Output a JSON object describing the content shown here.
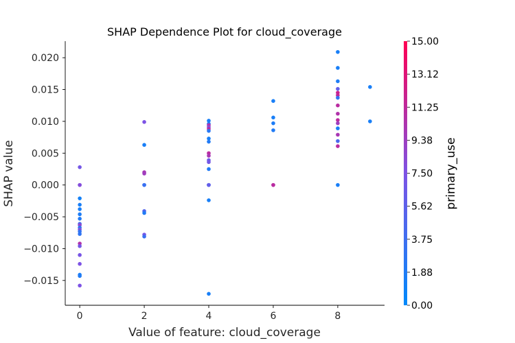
{
  "chart_data": {
    "type": "scatter",
    "title": "SHAP Dependence Plot for cloud_coverage",
    "xlabel": "Value of feature: cloud_coverage",
    "ylabel": "SHAP value",
    "xlim": [
      -0.45,
      9.45
    ],
    "ylim": [
      -0.0189,
      0.0226
    ],
    "xticks": [
      0,
      2,
      4,
      6,
      8
    ],
    "yticks": [
      -0.015,
      -0.01,
      -0.005,
      0.0,
      0.005,
      0.01,
      0.015,
      0.02
    ],
    "ytick_labels": [
      "−0.015",
      "−0.010",
      "−0.005",
      "0.000",
      "0.005",
      "0.010",
      "0.015",
      "0.020"
    ],
    "grid": false,
    "colorbar": {
      "title": "primary_use",
      "range": [
        0,
        15
      ],
      "tick_labels": [
        "0.00",
        "1.88",
        "3.75",
        "5.62",
        "7.50",
        "9.38",
        "11.25",
        "13.12",
        "15.00"
      ],
      "colors": [
        "#008afb",
        "#7d53e5",
        "#ff0052"
      ]
    },
    "points": [
      {
        "x": 0,
        "y": 0.0028,
        "c": 7.0
      },
      {
        "x": 0,
        "y": 0.0,
        "c": 6.5
      },
      {
        "x": 0,
        "y": 0.0,
        "c": 8.0
      },
      {
        "x": 0,
        "y": -0.0021,
        "c": 1.2
      },
      {
        "x": 0,
        "y": -0.0031,
        "c": 1.5
      },
      {
        "x": 0,
        "y": -0.0038,
        "c": 1.5
      },
      {
        "x": 0,
        "y": -0.0046,
        "c": 1.8
      },
      {
        "x": 0,
        "y": -0.0053,
        "c": 2.0
      },
      {
        "x": 0,
        "y": -0.0061,
        "c": 4.0
      },
      {
        "x": 0,
        "y": -0.0063,
        "c": 8.5
      },
      {
        "x": 0,
        "y": -0.0067,
        "c": 2.5
      },
      {
        "x": 0,
        "y": -0.007,
        "c": 7.8
      },
      {
        "x": 0,
        "y": -0.0073,
        "c": 3.0
      },
      {
        "x": 0,
        "y": -0.0077,
        "c": 2.8
      },
      {
        "x": 0,
        "y": -0.0092,
        "c": 10.5
      },
      {
        "x": 0,
        "y": -0.0096,
        "c": 7.0
      },
      {
        "x": 0,
        "y": -0.011,
        "c": 7.2
      },
      {
        "x": 0,
        "y": -0.0124,
        "c": 7.5
      },
      {
        "x": 0,
        "y": -0.0141,
        "c": 1.5
      },
      {
        "x": 0,
        "y": -0.0143,
        "c": 2.0
      },
      {
        "x": 0,
        "y": -0.0158,
        "c": 7.5
      },
      {
        "x": 2,
        "y": 0.0099,
        "c": 7.5
      },
      {
        "x": 2,
        "y": 0.0063,
        "c": 1.5
      },
      {
        "x": 2,
        "y": 0.002,
        "c": 10.0
      },
      {
        "x": 2,
        "y": 0.0018,
        "c": 9.5
      },
      {
        "x": 2,
        "y": 0.0,
        "c": 1.5
      },
      {
        "x": 2,
        "y": 0.0,
        "c": 3.5
      },
      {
        "x": 2,
        "y": -0.0041,
        "c": 5.0
      },
      {
        "x": 2,
        "y": -0.0044,
        "c": 2.0
      },
      {
        "x": 2,
        "y": -0.0078,
        "c": 7.0
      },
      {
        "x": 2,
        "y": -0.0081,
        "c": 3.5
      },
      {
        "x": 4,
        "y": 0.0101,
        "c": 1.5
      },
      {
        "x": 4,
        "y": 0.0096,
        "c": 2.0
      },
      {
        "x": 4,
        "y": 0.0094,
        "c": 10.5
      },
      {
        "x": 4,
        "y": 0.0091,
        "c": 8.0
      },
      {
        "x": 4,
        "y": 0.0088,
        "c": 11.0
      },
      {
        "x": 4,
        "y": 0.0085,
        "c": 2.5
      },
      {
        "x": 4,
        "y": 0.0073,
        "c": 1.5
      },
      {
        "x": 4,
        "y": 0.0068,
        "c": 2.0
      },
      {
        "x": 4,
        "y": 0.005,
        "c": 11.0
      },
      {
        "x": 4,
        "y": 0.0046,
        "c": 10.0
      },
      {
        "x": 4,
        "y": 0.0039,
        "c": 6.5
      },
      {
        "x": 4,
        "y": 0.0036,
        "c": 7.0
      },
      {
        "x": 4,
        "y": 0.0025,
        "c": 2.0
      },
      {
        "x": 4,
        "y": 0.0,
        "c": 1.5
      },
      {
        "x": 4,
        "y": 0.0,
        "c": 5.0
      },
      {
        "x": 4,
        "y": 0.0,
        "c": 6.0
      },
      {
        "x": 4,
        "y": -0.0024,
        "c": 1.5
      },
      {
        "x": 4,
        "y": -0.0171,
        "c": 1.5
      },
      {
        "x": 6,
        "y": 0.0132,
        "c": 1.5
      },
      {
        "x": 6,
        "y": 0.0106,
        "c": 1.5
      },
      {
        "x": 6,
        "y": 0.0097,
        "c": 1.8
      },
      {
        "x": 6,
        "y": 0.0086,
        "c": 2.0
      },
      {
        "x": 6,
        "y": 0.0,
        "c": 10.0
      },
      {
        "x": 6,
        "y": 0.0,
        "c": 11.0
      },
      {
        "x": 8,
        "y": 0.0209,
        "c": 1.5
      },
      {
        "x": 8,
        "y": 0.0184,
        "c": 1.5
      },
      {
        "x": 8,
        "y": 0.0163,
        "c": 1.8
      },
      {
        "x": 8,
        "y": 0.0151,
        "c": 6.0
      },
      {
        "x": 8,
        "y": 0.0145,
        "c": 12.0
      },
      {
        "x": 8,
        "y": 0.0141,
        "c": 11.5
      },
      {
        "x": 8,
        "y": 0.0137,
        "c": 3.0
      },
      {
        "x": 8,
        "y": 0.0125,
        "c": 11.0
      },
      {
        "x": 8,
        "y": 0.0112,
        "c": 10.5
      },
      {
        "x": 8,
        "y": 0.0102,
        "c": 11.0
      },
      {
        "x": 8,
        "y": 0.0097,
        "c": 9.5
      },
      {
        "x": 8,
        "y": 0.0089,
        "c": 1.5
      },
      {
        "x": 8,
        "y": 0.0079,
        "c": 10.0
      },
      {
        "x": 8,
        "y": 0.0069,
        "c": 4.5
      },
      {
        "x": 8,
        "y": 0.0061,
        "c": 11.0
      },
      {
        "x": 8,
        "y": 0.0,
        "c": 1.5
      },
      {
        "x": 9,
        "y": 0.0154,
        "c": 1.5
      },
      {
        "x": 9,
        "y": 0.01,
        "c": 1.5
      }
    ]
  }
}
